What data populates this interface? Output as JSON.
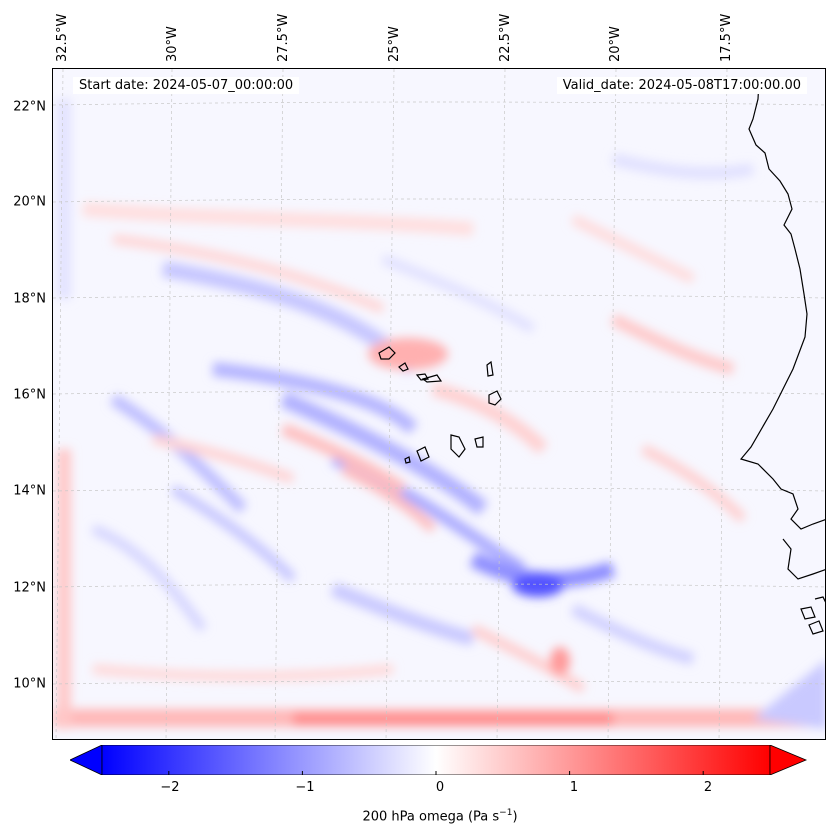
{
  "map": {
    "start_date": "Start date: 2024-05-07_00:00:00",
    "valid_date": "Valid_date: 2024-05-08T17:00:00.00",
    "longitude_labels": [
      "32.5°W",
      "30°W",
      "27.5°W",
      "25°W",
      "22.5°W",
      "20°W",
      "17.5°W"
    ],
    "latitude_labels": [
      "22°N",
      "20°N",
      "18°N",
      "16°N",
      "14°N",
      "12°N",
      "10°N"
    ],
    "field": "200 hPa omega",
    "colors": {
      "negative": "#0000ff",
      "neutral": "#ffffff",
      "positive": "#ff0000",
      "coast": "#000000"
    }
  },
  "colorbar": {
    "ticks": [
      "−2",
      "−1",
      "0",
      "1",
      "2"
    ],
    "tick_values": [
      -2,
      -1,
      0,
      1,
      2
    ],
    "range": [
      -2.5,
      2.5
    ],
    "label_main": "200 hPa omega (Pa s",
    "label_sup": "−1",
    "label_end": ")"
  }
}
